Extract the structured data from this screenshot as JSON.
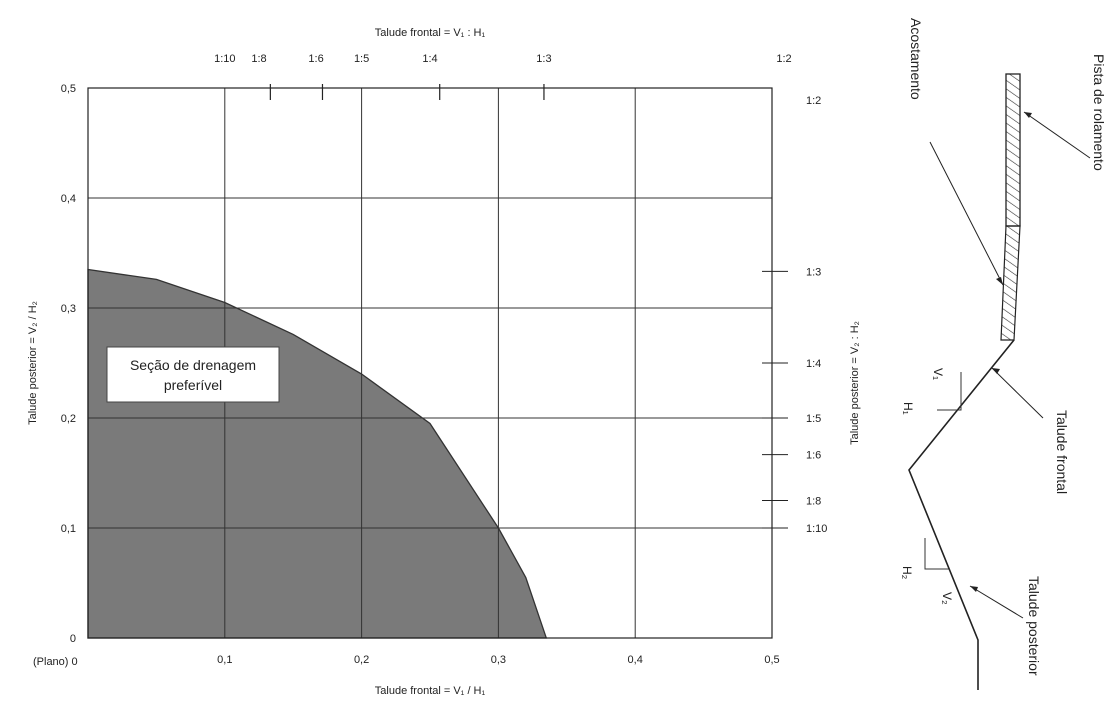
{
  "chart_data": {
    "type": "area",
    "xlabel": "Talude frontal = V₁ / H₁",
    "ylabel": "Talude posterior = V₂ / H₂",
    "top_axis_title": "Talude frontal = V₁ : H₁",
    "right_axis_title": "Talude posterior = V₂ : H₂",
    "xlim": [
      0,
      0.5
    ],
    "ylim": [
      0,
      0.5
    ],
    "x_ticks": [
      {
        "value": 0.1,
        "label": "0,1"
      },
      {
        "value": 0.2,
        "label": "0,2"
      },
      {
        "value": 0.3,
        "label": "0,3"
      },
      {
        "value": 0.4,
        "label": "0,4"
      },
      {
        "value": 0.5,
        "label": "0,5"
      }
    ],
    "x_origin_label": "(Plano) 0",
    "y_ticks": [
      {
        "value": 0,
        "label": "0"
      },
      {
        "value": 0.1,
        "label": "0,1"
      },
      {
        "value": 0.2,
        "label": "0,2"
      },
      {
        "value": 0.3,
        "label": "0,3"
      },
      {
        "value": 0.4,
        "label": "0,4"
      },
      {
        "value": 0.5,
        "label": "0,5"
      }
    ],
    "top_ticks": [
      {
        "value": 0.1,
        "label": "1:10"
      },
      {
        "value": 0.125,
        "label": "1:8"
      },
      {
        "value": 0.1667,
        "label": "1:6"
      },
      {
        "value": 0.2,
        "label": "1:5"
      },
      {
        "value": 0.25,
        "label": "1:4"
      },
      {
        "value": 0.3333,
        "label": "1:3"
      },
      {
        "value": 0.5,
        "label": "1:2"
      }
    ],
    "top_tick_marks": [
      0.1333,
      0.1714,
      0.2571,
      0.3333
    ],
    "right_ticks": [
      {
        "value": 0.5,
        "label": "1:2"
      },
      {
        "value": 0.3333,
        "label": "1:3"
      },
      {
        "value": 0.25,
        "label": "1:4"
      },
      {
        "value": 0.2,
        "label": "1:5"
      },
      {
        "value": 0.1667,
        "label": "1:6"
      },
      {
        "value": 0.125,
        "label": "1:8"
      },
      {
        "value": 0.1,
        "label": "1:10"
      }
    ],
    "grid": true,
    "region": {
      "label_line1": "Seção de drenagem",
      "label_line2": "preferível",
      "fill": "#7a7a7a",
      "boundary": [
        {
          "x": 0.0,
          "y": 0.335
        },
        {
          "x": 0.05,
          "y": 0.326
        },
        {
          "x": 0.1,
          "y": 0.305
        },
        {
          "x": 0.15,
          "y": 0.276
        },
        {
          "x": 0.2,
          "y": 0.24
        },
        {
          "x": 0.25,
          "y": 0.195
        },
        {
          "x": 0.3,
          "y": 0.1
        },
        {
          "x": 0.32,
          "y": 0.055
        },
        {
          "x": 0.335,
          "y": 0.0
        }
      ]
    }
  },
  "diagram": {
    "acostamento": "Acostamento",
    "pista": "Pista de rolamento",
    "talude_frontal": "Talude frontal",
    "talude_posterior": "Talude posterior",
    "v1": "V₁",
    "h1": "H₁",
    "v2": "V₂",
    "h2": "H₂"
  }
}
